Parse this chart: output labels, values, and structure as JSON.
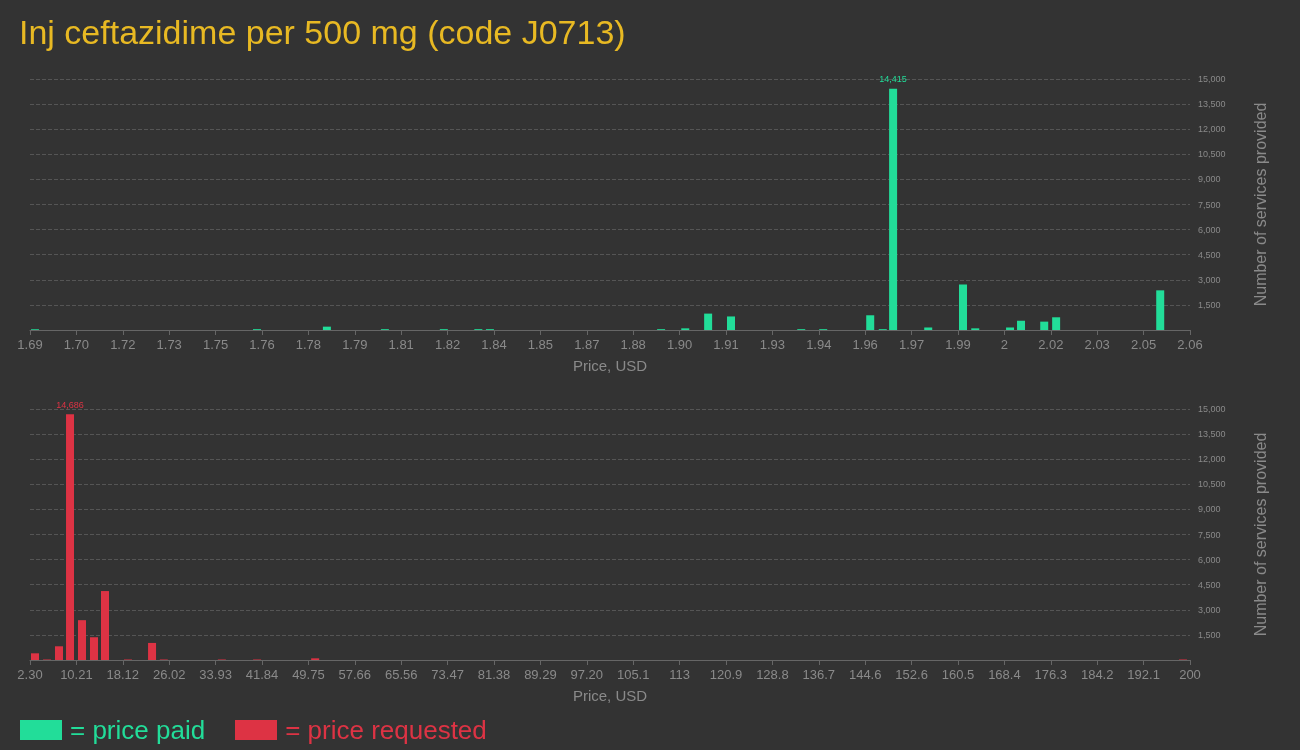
{
  "chart_data": [
    {
      "type": "bar",
      "title": "Inj ceftazidime per 500 mg (code J0713)",
      "xlabel": "Price, USD",
      "ylabel": "Number of services provided",
      "x": [
        1.6916,
        1.7624,
        1.7847,
        1.8032,
        1.822,
        1.833,
        1.8367,
        1.8913,
        1.899,
        1.9063,
        1.9136,
        1.936,
        1.943,
        1.958,
        1.962,
        1.9653,
        1.9765,
        1.9876,
        1.9915,
        2.0026,
        2.0061,
        2.0135,
        2.0173,
        2.0505
      ],
      "series": [
        {
          "name": "= price paid",
          "color": "#22dd99",
          "values": [
            50,
            50,
            200,
            50,
            50,
            50,
            50,
            50,
            100,
            980,
            810,
            50,
            50,
            880,
            50,
            14415,
            150,
            2720,
            100,
            150,
            550,
            500,
            760,
            2370
          ],
          "value_labels": [
            null,
            null,
            null,
            null,
            null,
            null,
            null,
            null,
            null,
            null,
            null,
            null,
            null,
            null,
            null,
            "14,415",
            null,
            null,
            null,
            null,
            null,
            null,
            null,
            null
          ]
        }
      ],
      "xlim": [
        1.69,
        2.06
      ],
      "xticks": [
        {
          "value": 1.69,
          "label": "1.69"
        },
        {
          "value": 1.7048,
          "label": "1.70"
        },
        {
          "value": 1.7196,
          "label": "1.72"
        },
        {
          "value": 1.7344,
          "label": "1.73"
        },
        {
          "value": 1.7492,
          "label": "1.75"
        },
        {
          "value": 1.764,
          "label": "1.76"
        },
        {
          "value": 1.7788,
          "label": "1.78"
        },
        {
          "value": 1.7936,
          "label": "1.79"
        },
        {
          "value": 1.8084,
          "label": "1.81"
        },
        {
          "value": 1.8232,
          "label": "1.82"
        },
        {
          "value": 1.838,
          "label": "1.84"
        },
        {
          "value": 1.8528,
          "label": "1.85"
        },
        {
          "value": 1.8676,
          "label": "1.87"
        },
        {
          "value": 1.8824,
          "label": "1.88"
        },
        {
          "value": 1.8972,
          "label": "1.90"
        },
        {
          "value": 1.912,
          "label": "1.91"
        },
        {
          "value": 1.9268,
          "label": "1.93"
        },
        {
          "value": 1.9416,
          "label": "1.94"
        },
        {
          "value": 1.9564,
          "label": "1.96"
        },
        {
          "value": 1.9712,
          "label": "1.97"
        },
        {
          "value": 1.986,
          "label": "1.99"
        },
        {
          "value": 2.0008,
          "label": "2"
        },
        {
          "value": 2.0156,
          "label": "2.02"
        },
        {
          "value": 2.0304,
          "label": "2.03"
        },
        {
          "value": 2.0452,
          "label": "2.05"
        },
        {
          "value": 2.06,
          "label": "2.06"
        }
      ],
      "ylim": [
        0,
        15000
      ],
      "yticks": [
        {
          "value": 1500,
          "label": "1,500"
        },
        {
          "value": 3000,
          "label": "3,000"
        },
        {
          "value": 4500,
          "label": "4,500"
        },
        {
          "value": 6000,
          "label": "6,000"
        },
        {
          "value": 7500,
          "label": "7,500"
        },
        {
          "value": 9000,
          "label": "9,000"
        },
        {
          "value": 10500,
          "label": "10,500"
        },
        {
          "value": 12000,
          "label": "12,000"
        },
        {
          "value": 13500,
          "label": "13,500"
        },
        {
          "value": 15000,
          "label": "15,000"
        }
      ],
      "grid": "y",
      "legend": "bottom left"
    },
    {
      "type": "bar",
      "xlabel": "Price, USD",
      "ylabel": "Number of services provided",
      "x": [
        3.15,
        5.2,
        7.24,
        9.12,
        11.16,
        13.21,
        15.08,
        19.0,
        23.1,
        25.1,
        35.0,
        41.0,
        50.9,
        198.8
      ],
      "series": [
        {
          "name": "= price requested",
          "color": "#dd3344",
          "values": [
            400,
            30,
            820,
            14686,
            2380,
            1360,
            4120,
            30,
            1020,
            30,
            30,
            30,
            100,
            30
          ],
          "value_labels": [
            null,
            null,
            null,
            "14,686",
            null,
            null,
            null,
            null,
            null,
            null,
            null,
            null,
            null,
            null
          ]
        }
      ],
      "xlim": [
        2.3,
        200
      ],
      "xticks": [
        {
          "value": 2.3,
          "label": "2.30"
        },
        {
          "value": 10.208,
          "label": "10.21"
        },
        {
          "value": 18.116,
          "label": "18.12"
        },
        {
          "value": 26.024,
          "label": "26.02"
        },
        {
          "value": 33.932,
          "label": "33.93"
        },
        {
          "value": 41.84,
          "label": "41.84"
        },
        {
          "value": 49.748,
          "label": "49.75"
        },
        {
          "value": 57.656,
          "label": "57.66"
        },
        {
          "value": 65.564,
          "label": "65.56"
        },
        {
          "value": 73.472,
          "label": "73.47"
        },
        {
          "value": 81.38,
          "label": "81.38"
        },
        {
          "value": 89.288,
          "label": "89.29"
        },
        {
          "value": 97.196,
          "label": "97.20"
        },
        {
          "value": 105.104,
          "label": "105.1"
        },
        {
          "value": 113.012,
          "label": "113"
        },
        {
          "value": 120.92,
          "label": "120.9"
        },
        {
          "value": 128.828,
          "label": "128.8"
        },
        {
          "value": 136.736,
          "label": "136.7"
        },
        {
          "value": 144.644,
          "label": "144.6"
        },
        {
          "value": 152.552,
          "label": "152.6"
        },
        {
          "value": 160.46,
          "label": "160.5"
        },
        {
          "value": 168.368,
          "label": "168.4"
        },
        {
          "value": 176.276,
          "label": "176.3"
        },
        {
          "value": 184.184,
          "label": "184.2"
        },
        {
          "value": 192.092,
          "label": "192.1"
        },
        {
          "value": 200,
          "label": "200"
        }
      ],
      "ylim": [
        0,
        15000
      ],
      "yticks": [
        {
          "value": 1500,
          "label": "1,500"
        },
        {
          "value": 3000,
          "label": "3,000"
        },
        {
          "value": 4500,
          "label": "4,500"
        },
        {
          "value": 6000,
          "label": "6,000"
        },
        {
          "value": 7500,
          "label": "7,500"
        },
        {
          "value": 9000,
          "label": "9,000"
        },
        {
          "value": 10500,
          "label": "10,500"
        },
        {
          "value": 12000,
          "label": "12,000"
        },
        {
          "value": 13500,
          "label": "13,500"
        },
        {
          "value": 15000,
          "label": "15,000"
        }
      ],
      "grid": "y",
      "legend": "bottom left"
    }
  ]
}
